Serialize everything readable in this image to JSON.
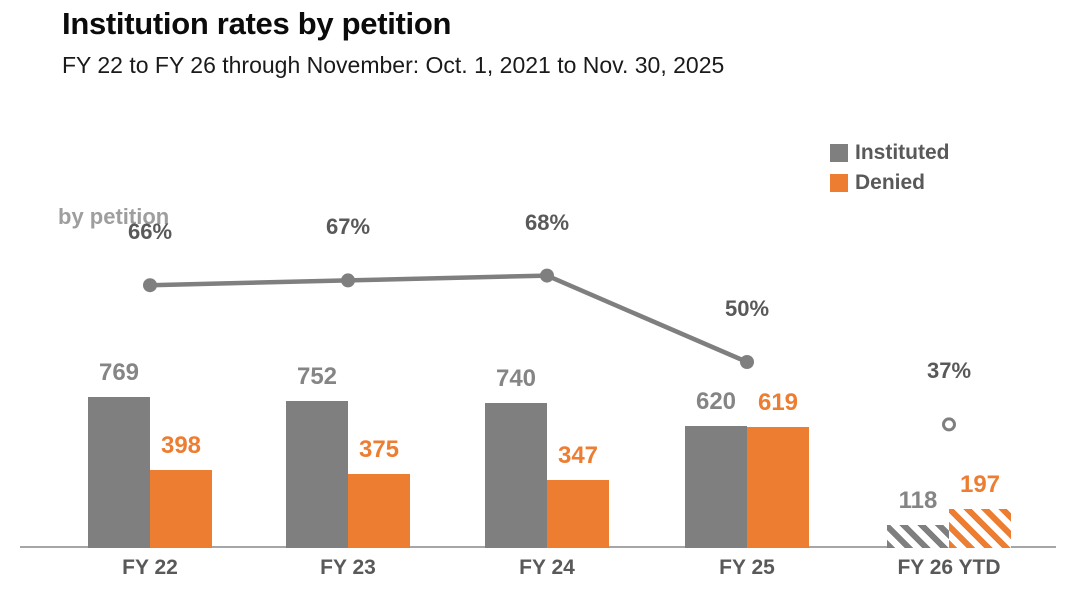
{
  "header": {
    "title": "Institution rates by petition",
    "subtitle": "FY 22 to FY 26 through November: Oct. 1, 2021 to Nov. 30, 2025"
  },
  "legend": {
    "items": [
      {
        "label": "Instituted",
        "color": "#7F7F7F"
      },
      {
        "label": "Denied",
        "color": "#ED7D31"
      }
    ]
  },
  "chart_data": {
    "type": "bar",
    "subtype": "grouped bars with overlaid rate line",
    "categories": [
      "FY 22",
      "FY 23",
      "FY 24",
      "FY 25",
      "FY 26 YTD"
    ],
    "series": [
      {
        "name": "Instituted",
        "type": "bar",
        "color": "#7F7F7F",
        "values": [
          769,
          752,
          740,
          620,
          118
        ],
        "hatched": [
          false,
          false,
          false,
          false,
          true
        ]
      },
      {
        "name": "Denied",
        "type": "bar",
        "color": "#ED7D31",
        "values": [
          398,
          375,
          347,
          619,
          197
        ],
        "hatched": [
          false,
          false,
          false,
          false,
          true
        ]
      },
      {
        "name": "by petition",
        "type": "line",
        "color": "#7F7F7F",
        "unit": "%",
        "values": [
          66,
          67,
          68,
          50,
          37
        ],
        "labels": [
          "66%",
          "67%",
          "68%",
          "50%",
          "37%"
        ],
        "markers": [
          "filled",
          "filled",
          "filled",
          "filled",
          "open"
        ]
      }
    ],
    "line_series_label": "by petition",
    "legend_position": "top-right",
    "grid": false,
    "ylim_bars": [
      0,
      800
    ]
  },
  "colors": {
    "instituted": "#7F7F7F",
    "denied": "#ED7D31",
    "pct_label": "#595959",
    "axis_label": "#595959",
    "gray_value_label": "#858585",
    "line_series_label": "#9E9E9E",
    "axis_line": "#A6A6A6"
  }
}
